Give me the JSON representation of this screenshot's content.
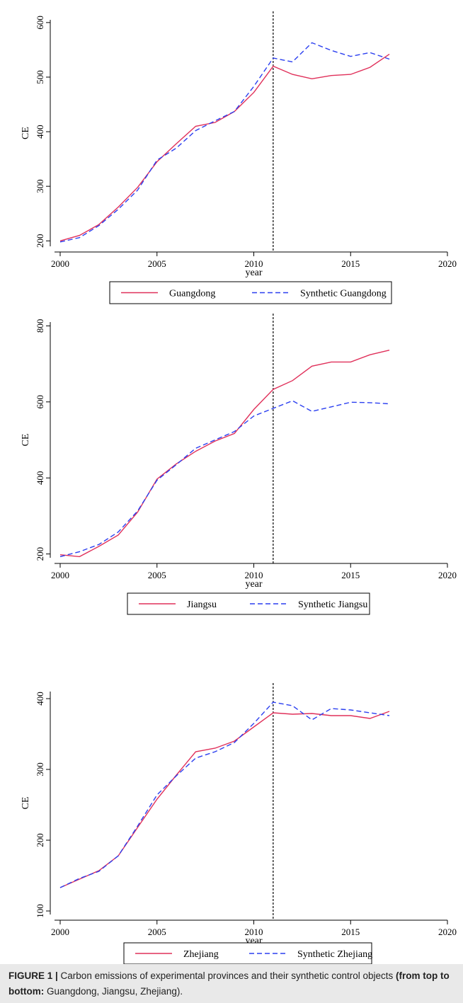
{
  "caption": {
    "label": "FIGURE 1 |",
    "text_before": " Carbon emissions of experimental provinces and their synthetic control objects ",
    "text_bold": "(from top to bottom:",
    "text_after": " Guangdong, Jiangsu, Zhejiang)."
  },
  "colors": {
    "actual": "#e0305a",
    "synthetic": "#2b3ff0",
    "treatment_line": "#000000"
  },
  "chart_data": [
    {
      "type": "line",
      "ylabel": "CE",
      "xlabel": "year",
      "xlim": [
        2000,
        2020
      ],
      "ylim": [
        190,
        605
      ],
      "xticks": [
        2000,
        2005,
        2010,
        2015,
        2020
      ],
      "yticks": [
        200,
        300,
        400,
        500,
        600
      ],
      "treatment_year": 2011,
      "legend_position": "bottom",
      "x": [
        2000,
        2001,
        2002,
        2003,
        2004,
        2005,
        2006,
        2007,
        2008,
        2009,
        2010,
        2011,
        2012,
        2013,
        2014,
        2015,
        2016,
        2017
      ],
      "series": [
        {
          "name": "Guangdong",
          "style": "solid",
          "values": [
            200,
            210,
            230,
            262,
            298,
            345,
            378,
            410,
            417,
            437,
            472,
            520,
            505,
            497,
            503,
            505,
            518,
            542
          ]
        },
        {
          "name": "Synthetic Guangdong",
          "style": "dashed",
          "values": [
            198,
            206,
            228,
            258,
            293,
            348,
            370,
            402,
            420,
            437,
            483,
            535,
            528,
            563,
            549,
            538,
            545,
            533
          ]
        }
      ]
    },
    {
      "type": "line",
      "ylabel": "CE",
      "xlabel": "year",
      "xlim": [
        2000,
        2020
      ],
      "ylim": [
        190,
        810
      ],
      "xticks": [
        2000,
        2005,
        2010,
        2015,
        2020
      ],
      "yticks": [
        200,
        400,
        600,
        800
      ],
      "treatment_year": 2011,
      "legend_position": "bottom",
      "x": [
        2000,
        2001,
        2002,
        2003,
        2004,
        2005,
        2006,
        2007,
        2008,
        2009,
        2010,
        2011,
        2012,
        2013,
        2014,
        2015,
        2016,
        2017
      ],
      "series": [
        {
          "name": "Jiangsu",
          "style": "solid",
          "values": [
            198,
            193,
            220,
            250,
            310,
            397,
            437,
            470,
            497,
            517,
            580,
            633,
            656,
            694,
            705,
            705,
            724,
            736
          ]
        },
        {
          "name": "Synthetic Jiangsu",
          "style": "dashed",
          "values": [
            193,
            206,
            225,
            258,
            313,
            394,
            435,
            478,
            500,
            522,
            563,
            583,
            603,
            575,
            587,
            599,
            598,
            595
          ]
        }
      ]
    },
    {
      "type": "line",
      "ylabel": "CE",
      "xlabel": "year",
      "xlim": [
        2000,
        2020
      ],
      "ylim": [
        95,
        410
      ],
      "xticks": [
        2000,
        2005,
        2010,
        2015,
        2020
      ],
      "yticks": [
        100,
        200,
        300,
        400
      ],
      "treatment_year": 2011,
      "legend_position": "bottom",
      "x": [
        2000,
        2001,
        2002,
        2003,
        2004,
        2005,
        2006,
        2007,
        2008,
        2009,
        2010,
        2011,
        2012,
        2013,
        2014,
        2015,
        2016,
        2017
      ],
      "series": [
        {
          "name": "Zhejiang",
          "style": "solid",
          "values": [
            133,
            145,
            157,
            178,
            218,
            258,
            292,
            325,
            330,
            340,
            360,
            380,
            378,
            379,
            376,
            376,
            372,
            382
          ]
        },
        {
          "name": "Synthetic Zhejiang",
          "style": "dashed",
          "values": [
            133,
            146,
            156,
            178,
            220,
            264,
            291,
            316,
            325,
            338,
            365,
            395,
            390,
            370,
            386,
            384,
            380,
            376
          ]
        }
      ]
    }
  ]
}
